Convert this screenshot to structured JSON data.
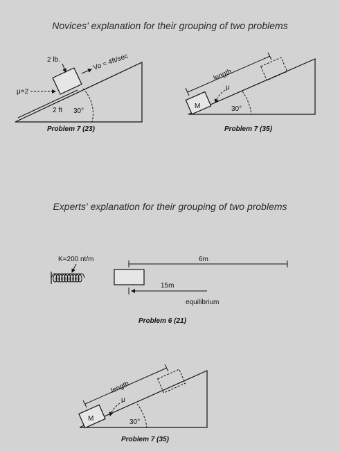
{
  "novices": {
    "title": "Novices' explanation for their grouping of two problems",
    "problem_a": {
      "mass_label": "2 lb.",
      "velocity_label": "Vo = 4ft/sec",
      "mu_label": "μ=2",
      "distance_label": "2 ft",
      "angle_label": "30°",
      "caption": "Problem 7 (23)"
    },
    "problem_b": {
      "length_label": "length",
      "mu_label": "μ",
      "mass_label": "M",
      "angle_label": "30°",
      "caption": "Problem 7 (35)"
    }
  },
  "experts": {
    "title": "Experts' explanation for their grouping of two problems",
    "problem_a": {
      "spring_label": "K=200 nt/m",
      "distance_label": "6m",
      "distance2_label": "15m",
      "equilibrium_label": "equilibrium",
      "caption": "Problem 6 (21)"
    },
    "problem_b": {
      "length_label": "length",
      "mu_label": "μ",
      "mass_label": "M",
      "angle_label": "30°",
      "caption": "Problem 7 (35)"
    }
  }
}
